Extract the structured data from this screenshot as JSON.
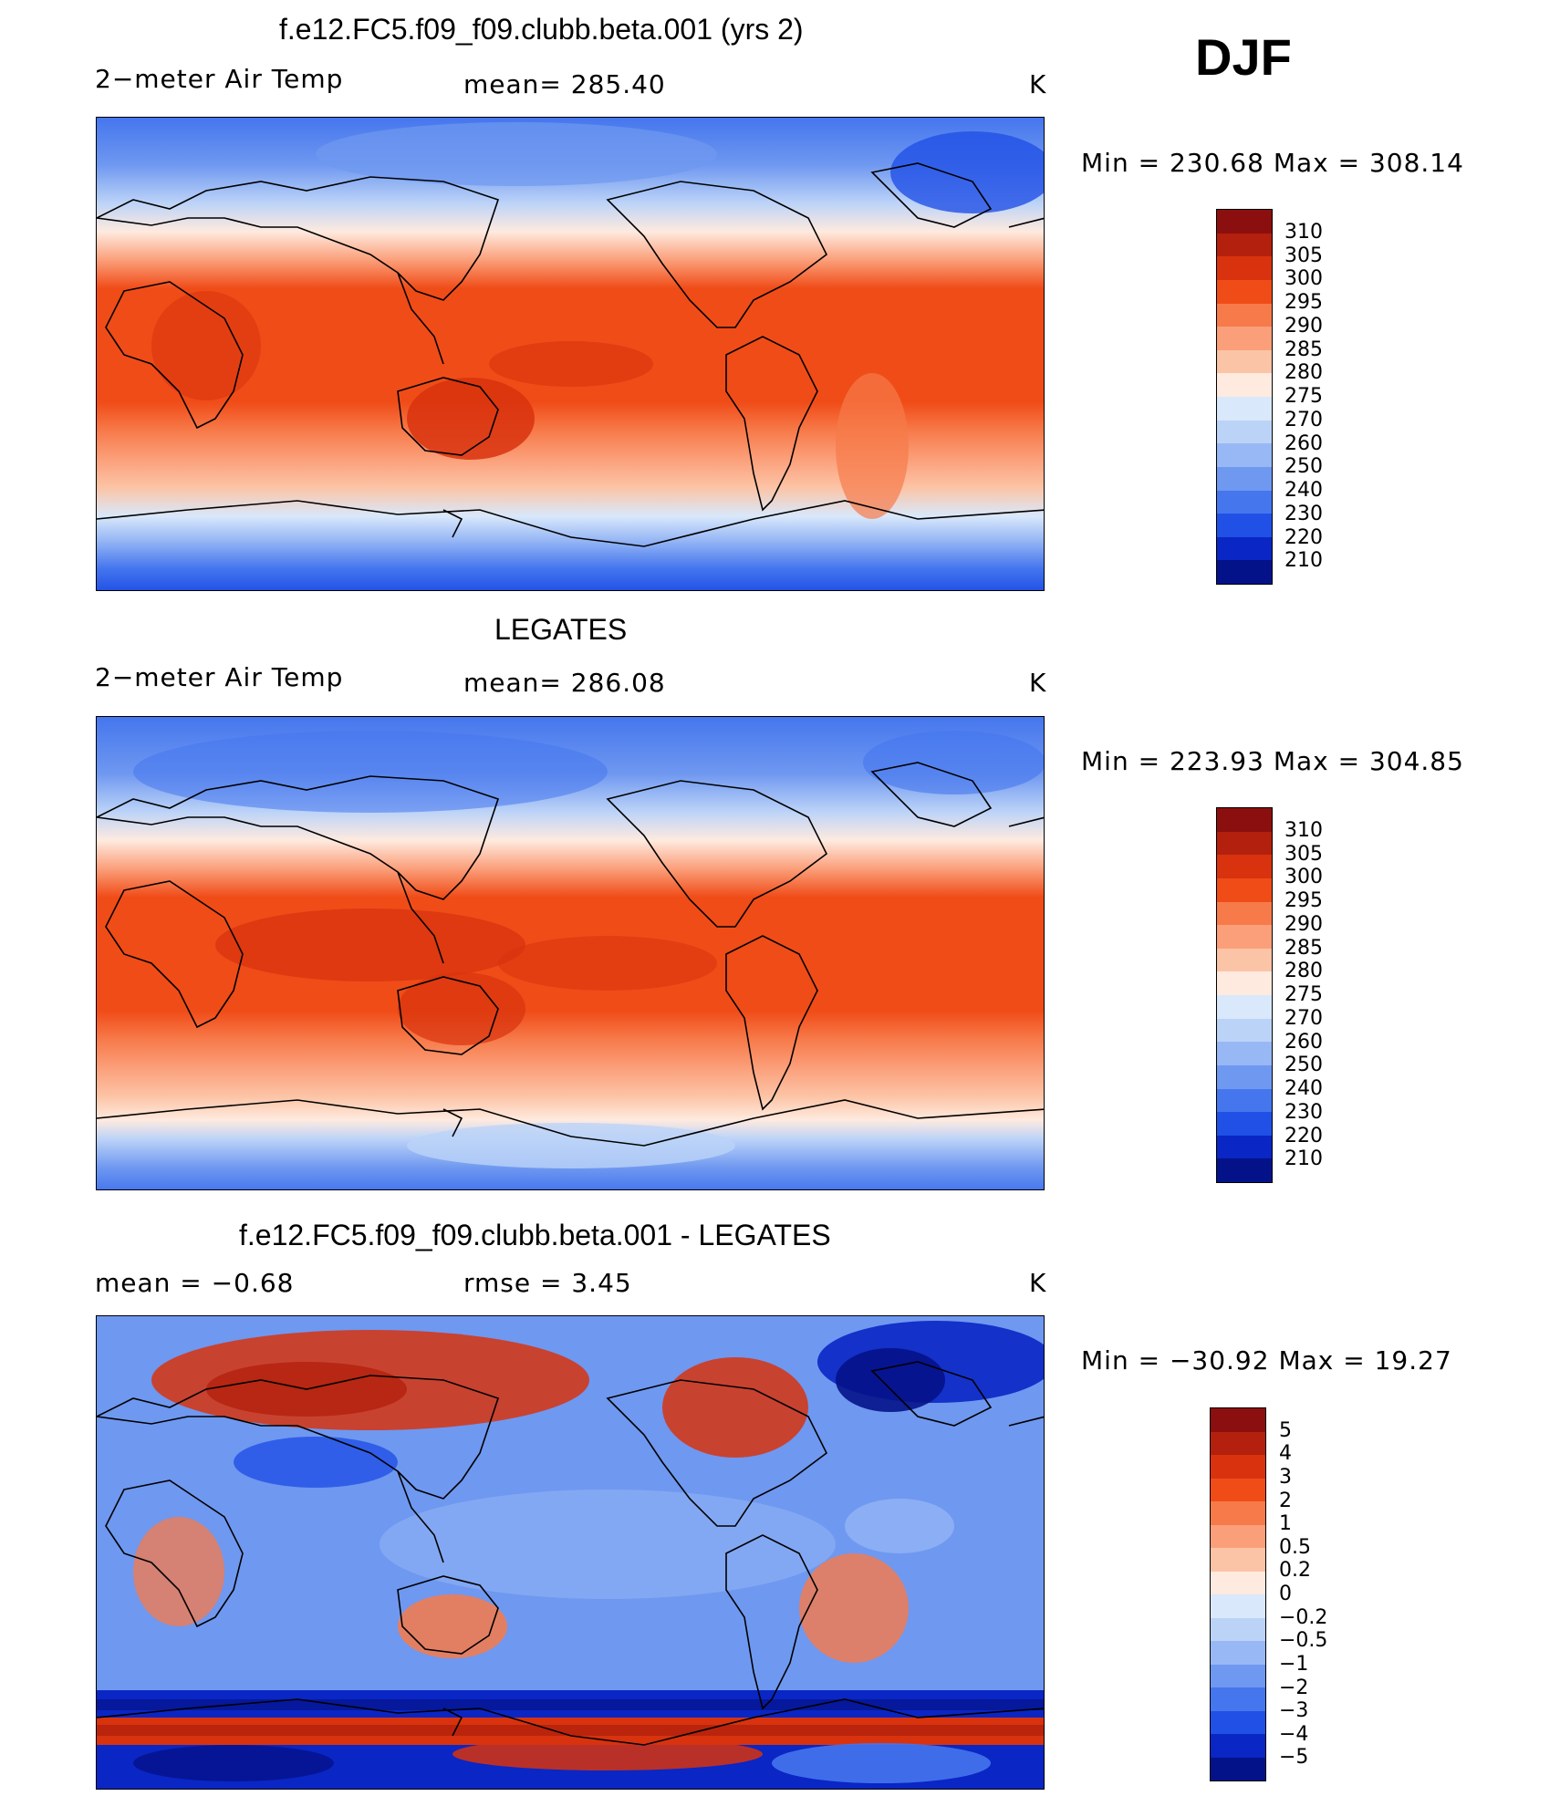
{
  "season": "DJF",
  "units": "K",
  "panels": [
    {
      "title": "f.e12.FC5.f09_f09.clubb.beta.001 (yrs 2)",
      "left_label": "2−meter Air Temp",
      "mid_label": "mean=  285.40",
      "right_label": "K",
      "minmax": "Min  =  230.68  Max  =  308.14",
      "legend_labels": [
        "310",
        "305",
        "300",
        "295",
        "290",
        "285",
        "280",
        "275",
        "270",
        "260",
        "250",
        "240",
        "230",
        "220",
        "210"
      ]
    },
    {
      "title": "LEGATES",
      "left_label": "2−meter Air Temp",
      "mid_label": "mean=  286.08",
      "right_label": "K",
      "minmax": "Min  =  223.93  Max  =  304.85",
      "legend_labels": [
        "310",
        "305",
        "300",
        "295",
        "290",
        "285",
        "280",
        "275",
        "270",
        "260",
        "250",
        "240",
        "230",
        "220",
        "210"
      ]
    },
    {
      "title": "f.e12.FC5.f09_f09.clubb.beta.001 - LEGATES",
      "left_label": "mean  =    −0.68",
      "mid_label": "rmse  =      3.45",
      "right_label": "K",
      "minmax": "Min  =  −30.92  Max  =    19.27",
      "legend_labels": [
        "5",
        "4",
        "3",
        "2",
        "1",
        "0.5",
        "0.2",
        "0",
        "−0.2",
        "−0.5",
        "−1",
        "−2",
        "−3",
        "−4",
        "−5"
      ]
    }
  ],
  "colors": {
    "temp_scale": [
      "#8b0f0f",
      "#b3200d",
      "#d8330e",
      "#f04c18",
      "#f77a4a",
      "#fb9f7a",
      "#fcc4a6",
      "#feeadf",
      "#d9e8fb",
      "#bcd3f8",
      "#98b8f5",
      "#6f98f0",
      "#4576ee",
      "#2050e6",
      "#0a26c4",
      "#04128a"
    ],
    "diff_scale": [
      "#8b0f0f",
      "#b3200d",
      "#d8330e",
      "#f04c18",
      "#f77a4a",
      "#fb9f7a",
      "#fcc4a6",
      "#feeadf",
      "#d9e8fb",
      "#bcd3f8",
      "#98b8f5",
      "#6f98f0",
      "#4576ee",
      "#2050e6",
      "#0a26c4",
      "#04128a"
    ]
  }
}
